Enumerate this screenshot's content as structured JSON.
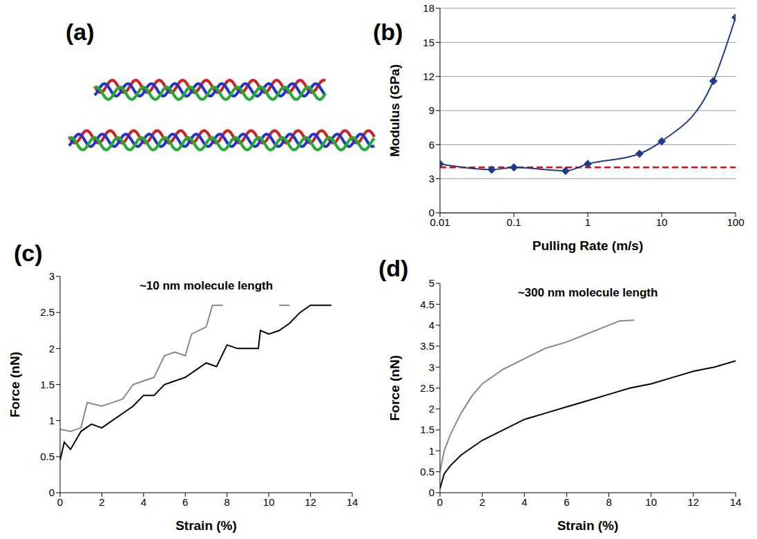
{
  "diagram": {
    "panel_label": "(a)"
  },
  "chart_data": [
    {
      "panel_label": "(b)",
      "type": "line",
      "x_label": "Pulling Rate (m/s)",
      "y_label": "Modulus (GPa)",
      "log": "x",
      "xlim": [
        0.01,
        100
      ],
      "xticks": [
        0.01,
        0.1,
        1,
        10,
        100
      ],
      "ylim": [
        0,
        18
      ],
      "yticks": [
        0,
        3,
        6,
        9,
        12,
        15,
        18
      ],
      "grid": true,
      "reference_lines": [
        {
          "y": 4,
          "color": "#ff0000",
          "line_style": "dashed"
        }
      ],
      "series": [
        {
          "color": "#1f3c88",
          "marker": "diamond",
          "line_style": "smooth",
          "x": [
            0.01,
            0.05,
            0.1,
            0.5,
            1,
            5,
            10,
            50,
            100
          ],
          "values": [
            4.3,
            3.8,
            4.0,
            3.7,
            4.3,
            5.2,
            6.3,
            11.6,
            17.2
          ]
        }
      ]
    },
    {
      "panel_label": "(c)",
      "type": "line",
      "annotation": "~10 nm molecule length",
      "x_label": "Strain (%)",
      "y_label": "Force (nN)",
      "xlim": [
        0,
        14
      ],
      "xticks": [
        0,
        2,
        4,
        6,
        8,
        10,
        12,
        14
      ],
      "ylim": [
        0,
        3
      ],
      "yticks": [
        0,
        0.5,
        1,
        1.5,
        2,
        2.5,
        3
      ],
      "grid": false,
      "series": [
        {
          "color": "#888888",
          "x": [
            0,
            0.5,
            1,
            1.3,
            2,
            2.5,
            3,
            3.5,
            4,
            4.5,
            5,
            5.5,
            6,
            6.3,
            7,
            7.3,
            7.8,
            9,
            10.5,
            11
          ],
          "values": [
            0.88,
            0.85,
            0.9,
            1.25,
            1.2,
            1.25,
            1.3,
            1.5,
            1.55,
            1.6,
            1.9,
            1.95,
            1.9,
            2.2,
            2.3,
            2.6,
            2.6,
            null,
            2.6,
            2.6
          ]
        },
        {
          "color": "#000000",
          "x": [
            0,
            0.2,
            0.5,
            1,
            1.5,
            2,
            2.5,
            3,
            3.5,
            4,
            4.5,
            5,
            5.5,
            6,
            6.5,
            7,
            7.5,
            8,
            8.5,
            9,
            9.5,
            9.6,
            10,
            10.5,
            11,
            11.5,
            12,
            13
          ],
          "values": [
            0.45,
            0.7,
            0.6,
            0.85,
            0.95,
            0.9,
            1.0,
            1.1,
            1.2,
            1.35,
            1.35,
            1.5,
            1.55,
            1.6,
            1.7,
            1.8,
            1.75,
            2.05,
            2.0,
            2.0,
            2.0,
            2.25,
            2.2,
            2.25,
            2.35,
            2.5,
            2.6,
            2.6
          ]
        }
      ]
    },
    {
      "panel_label": "(d)",
      "type": "line",
      "annotation": "~300 nm molecule length",
      "x_label": "Strain (%)",
      "y_label": "Force (nN)",
      "xlim": [
        0,
        14
      ],
      "xticks": [
        0,
        2,
        4,
        6,
        8,
        10,
        12,
        14
      ],
      "ylim": [
        0,
        5
      ],
      "yticks": [
        0,
        0.5,
        1,
        1.5,
        2,
        2.5,
        3,
        3.5,
        4,
        4.5,
        5
      ],
      "grid": false,
      "series": [
        {
          "color": "#888888",
          "x": [
            0,
            0.2,
            0.5,
            1,
            1.5,
            2,
            3,
            4,
            5,
            6,
            7,
            8,
            8.5,
            9.2
          ],
          "values": [
            0.5,
            1.0,
            1.4,
            1.9,
            2.3,
            2.6,
            2.95,
            3.2,
            3.45,
            3.6,
            3.8,
            4.0,
            4.1,
            4.12
          ]
        },
        {
          "color": "#000000",
          "x": [
            0,
            0.2,
            0.5,
            1,
            2,
            3,
            4,
            5,
            6,
            7,
            8,
            9,
            10,
            11,
            12,
            13,
            14
          ],
          "values": [
            0.1,
            0.45,
            0.65,
            0.9,
            1.25,
            1.5,
            1.75,
            1.9,
            2.05,
            2.2,
            2.35,
            2.5,
            2.6,
            2.75,
            2.9,
            3.0,
            3.15
          ]
        }
      ]
    }
  ]
}
